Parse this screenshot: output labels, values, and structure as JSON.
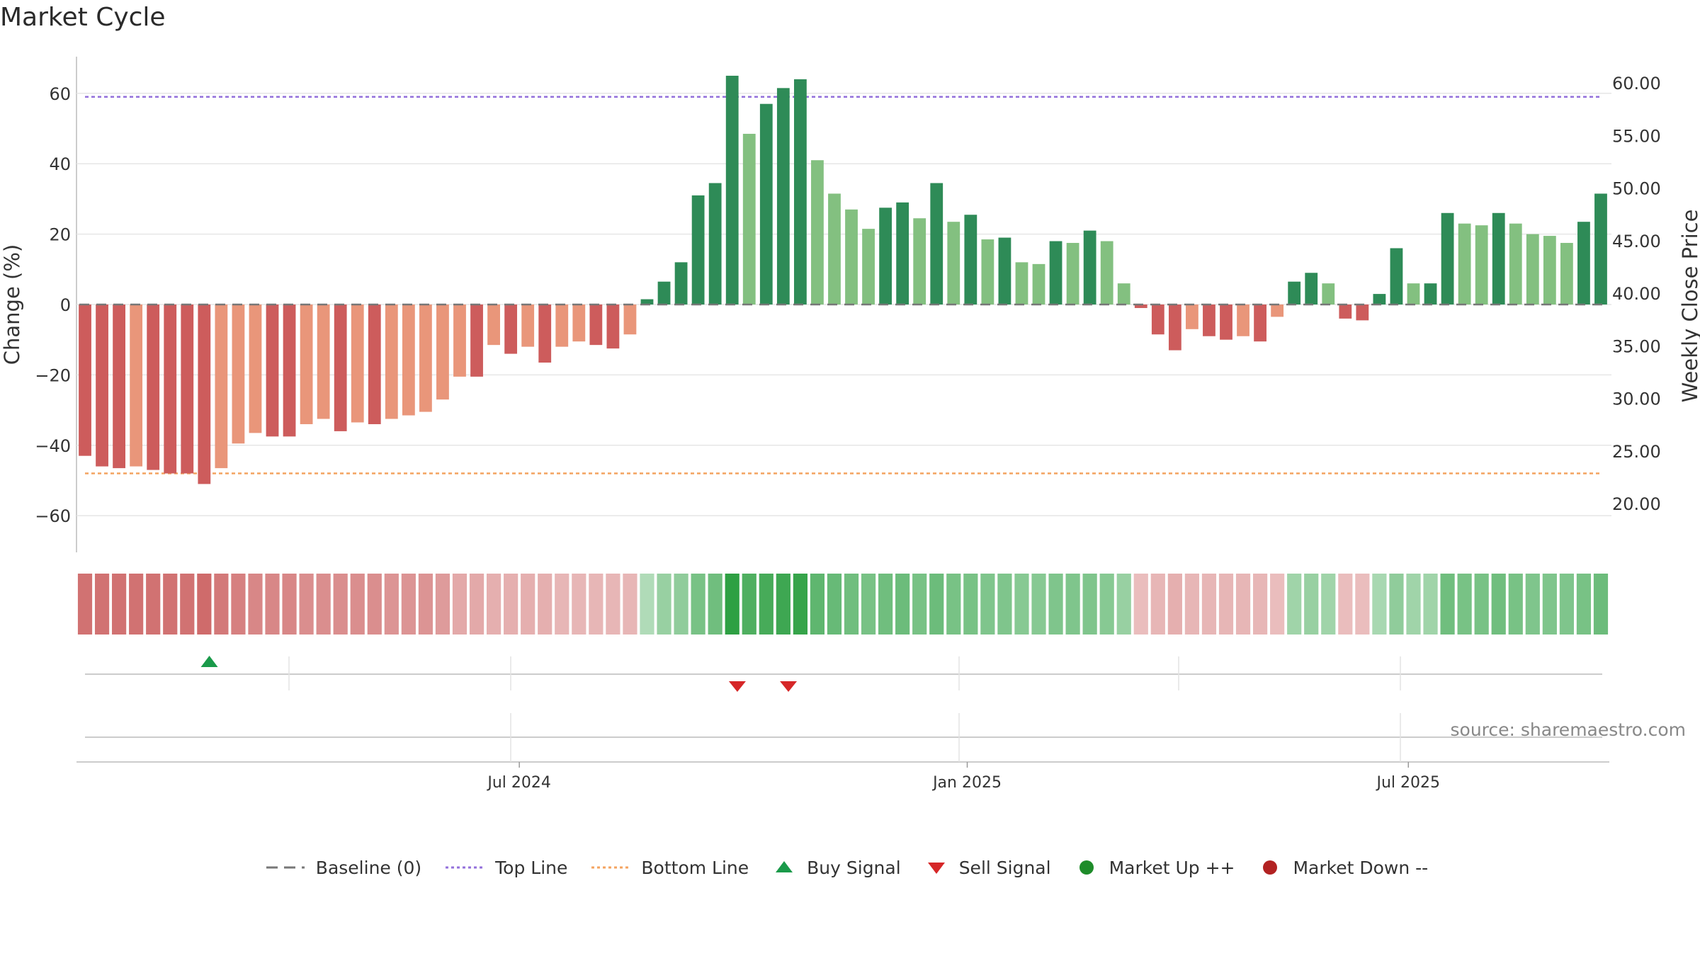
{
  "title": "Market Cycle",
  "source_note": "source: sharemaestro.com",
  "colors": {
    "up_strong": "#2e8b57",
    "up_light": "#83c080",
    "down_strong": "#cd5c5c",
    "down_light": "#e9967a",
    "top_line": "#9370db",
    "bottom_line": "#f4a460",
    "baseline": "#777777",
    "buy": "#1a9a4a",
    "sell": "#d62728",
    "market_up": "#1e8c2a",
    "market_down": "#b22222"
  },
  "legend": [
    {
      "key": "baseline",
      "label": "Baseline (0)",
      "symbol": "dash",
      "color": "#777777"
    },
    {
      "key": "top",
      "label": "Top Line",
      "symbol": "dot",
      "color": "#9370db"
    },
    {
      "key": "bottom",
      "label": "Bottom Line",
      "symbol": "dot",
      "color": "#f4a460"
    },
    {
      "key": "buy",
      "label": "Buy Signal",
      "symbol": "triangle-up",
      "color": "#1a9a4a"
    },
    {
      "key": "sell",
      "label": "Sell Signal",
      "symbol": "triangle-down",
      "color": "#d62728"
    },
    {
      "key": "mup",
      "label": "Market Up ++",
      "symbol": "circle",
      "color": "#1e8c2a"
    },
    {
      "key": "mdown",
      "label": "Market Down --",
      "symbol": "circle",
      "color": "#b22222"
    }
  ],
  "chart_data": {
    "type": "bar",
    "ylabel": "Change (%)",
    "y2label": "Weekly Close Price",
    "ylim": [
      -70,
      70
    ],
    "y_ticks": [
      60,
      40,
      20,
      0,
      -20,
      -40,
      -60
    ],
    "y_tick_labels": [
      "60",
      "40",
      "20",
      "0",
      "−20",
      "−40",
      "−60"
    ],
    "y2_ticks": [
      60,
      55,
      50,
      45,
      40,
      35,
      30,
      25,
      20
    ],
    "y2_tick_labels": [
      "60.00",
      "55.00",
      "50.00",
      "45.00",
      "40.00",
      "35.00",
      "30.00",
      "25.00",
      "20.00"
    ],
    "top_line": 59,
    "bottom_line": -48,
    "x_tick_labels": [
      "Jul 2024",
      "Jan 2025",
      "Jul 2025"
    ],
    "x_tick_index": [
      25.5,
      51.8,
      77.7
    ],
    "series": [
      {
        "values": [
          -43,
          -46,
          -46.5,
          -46,
          -47,
          -48,
          -48,
          -51,
          -46.5,
          -39.5,
          -36.5,
          -37.5,
          -37.5,
          -34,
          -32.5,
          -36,
          -33.5,
          -34,
          -32.5,
          -31.5,
          -30.5,
          -27,
          -20.5,
          -20.5,
          -11.5,
          -14,
          -12,
          -16.5,
          -12,
          -10.5,
          -11.5,
          -12.5,
          -8.5,
          1.5,
          6.5,
          12,
          31,
          34.5,
          65,
          48.5,
          57,
          61.5,
          64,
          41,
          31.5,
          27,
          21.5,
          27.5,
          29,
          24.5,
          34.5,
          23.5,
          25.5,
          18.5,
          19,
          12,
          11.5,
          18,
          17.5,
          21,
          18,
          6,
          -1,
          -8.5,
          -13,
          -7,
          -9,
          -10,
          -9,
          -10.5,
          -3.5,
          6.5,
          9,
          6,
          -4,
          -4.5,
          3,
          16,
          6,
          6,
          26,
          23,
          22.5,
          26,
          23,
          20,
          19.5,
          17.5,
          23.5,
          31.5
        ],
        "strength": [
          1,
          1,
          1,
          0,
          1,
          1,
          1,
          1,
          0,
          0,
          0,
          1,
          1,
          0,
          0,
          1,
          0,
          1,
          0,
          0,
          0,
          0,
          0,
          1,
          0,
          1,
          0,
          1,
          0,
          0,
          1,
          1,
          0,
          1,
          1,
          1,
          1,
          1,
          1,
          0,
          1,
          1,
          1,
          0,
          0,
          0,
          0,
          1,
          1,
          0,
          1,
          0,
          1,
          0,
          1,
          0,
          0,
          1,
          0,
          1,
          0,
          0,
          1,
          1,
          1,
          0,
          1,
          1,
          0,
          1,
          0,
          1,
          1,
          0,
          1,
          1,
          1,
          1,
          0,
          1,
          1,
          0,
          0,
          1,
          0,
          0,
          0,
          0,
          1,
          1
        ]
      }
    ],
    "heat_strip": [
      -0.75,
      -0.75,
      -0.75,
      -0.75,
      -0.75,
      -0.75,
      -0.75,
      -0.8,
      -0.7,
      -0.65,
      -0.6,
      -0.6,
      -0.6,
      -0.55,
      -0.55,
      -0.55,
      -0.55,
      -0.55,
      -0.5,
      -0.5,
      -0.5,
      -0.45,
      -0.35,
      -0.35,
      -0.3,
      -0.3,
      -0.3,
      -0.3,
      -0.25,
      -0.25,
      -0.25,
      -0.25,
      -0.25,
      0.2,
      0.35,
      0.4,
      0.55,
      0.6,
      1,
      0.8,
      0.85,
      0.9,
      0.95,
      0.7,
      0.65,
      0.6,
      0.55,
      0.6,
      0.62,
      0.55,
      0.62,
      0.55,
      0.55,
      0.5,
      0.5,
      0.45,
      0.45,
      0.5,
      0.5,
      0.5,
      0.45,
      0.35,
      -0.2,
      -0.25,
      -0.3,
      -0.25,
      -0.25,
      -0.25,
      -0.25,
      -0.25,
      -0.2,
      0.3,
      0.35,
      0.3,
      -0.2,
      -0.2,
      0.25,
      0.4,
      0.3,
      0.3,
      0.6,
      0.55,
      0.55,
      0.6,
      0.55,
      0.5,
      0.5,
      0.5,
      0.55,
      0.62
    ],
    "buy_signals": [
      7.3
    ],
    "sell_signals": [
      38.3,
      41.3
    ]
  }
}
